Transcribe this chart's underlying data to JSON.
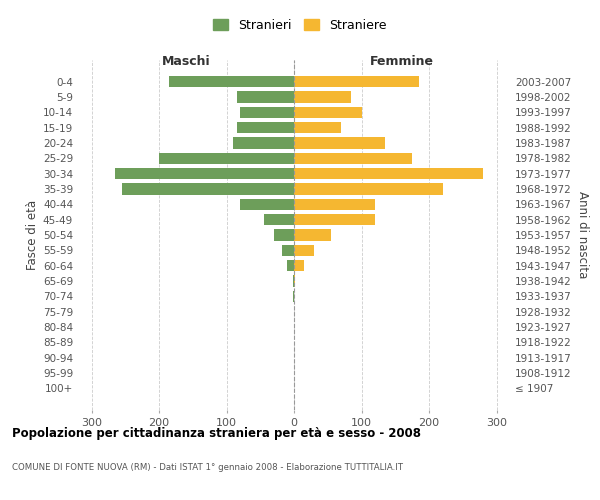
{
  "age_groups": [
    "0-4",
    "5-9",
    "10-14",
    "15-19",
    "20-24",
    "25-29",
    "30-34",
    "35-39",
    "40-44",
    "45-49",
    "50-54",
    "55-59",
    "60-64",
    "65-69",
    "70-74",
    "75-79",
    "80-84",
    "85-89",
    "90-94",
    "95-99",
    "100+"
  ],
  "birth_years": [
    "2003-2007",
    "1998-2002",
    "1993-1997",
    "1988-1992",
    "1983-1987",
    "1978-1982",
    "1973-1977",
    "1968-1972",
    "1963-1967",
    "1958-1962",
    "1953-1957",
    "1948-1952",
    "1943-1947",
    "1938-1942",
    "1933-1937",
    "1928-1932",
    "1923-1927",
    "1918-1922",
    "1913-1917",
    "1908-1912",
    "≤ 1907"
  ],
  "maschi": [
    185,
    85,
    80,
    85,
    90,
    200,
    265,
    255,
    80,
    45,
    30,
    18,
    10,
    2,
    1,
    0,
    0,
    0,
    0,
    0,
    0
  ],
  "femmine": [
    185,
    85,
    100,
    70,
    135,
    175,
    280,
    220,
    120,
    120,
    55,
    30,
    15,
    2,
    0,
    0,
    0,
    0,
    0,
    0,
    0
  ],
  "male_color": "#6d9e5a",
  "female_color": "#f5b731",
  "grid_color": "#cccccc",
  "zero_line_color": "#999999",
  "background_color": "#ffffff",
  "title": "Popolazione per cittadinanza straniera per età e sesso - 2008",
  "subtitle": "COMUNE DI FONTE NUOVA (RM) - Dati ISTAT 1° gennaio 2008 - Elaborazione TUTTITALIA.IT",
  "left_label": "Maschi",
  "right_label": "Femmine",
  "y_label_left": "Fasce di età",
  "y_label_right": "Anni di nascita",
  "legend_male": "Stranieri",
  "legend_female": "Straniere",
  "xlim": 320,
  "bar_height": 0.75
}
